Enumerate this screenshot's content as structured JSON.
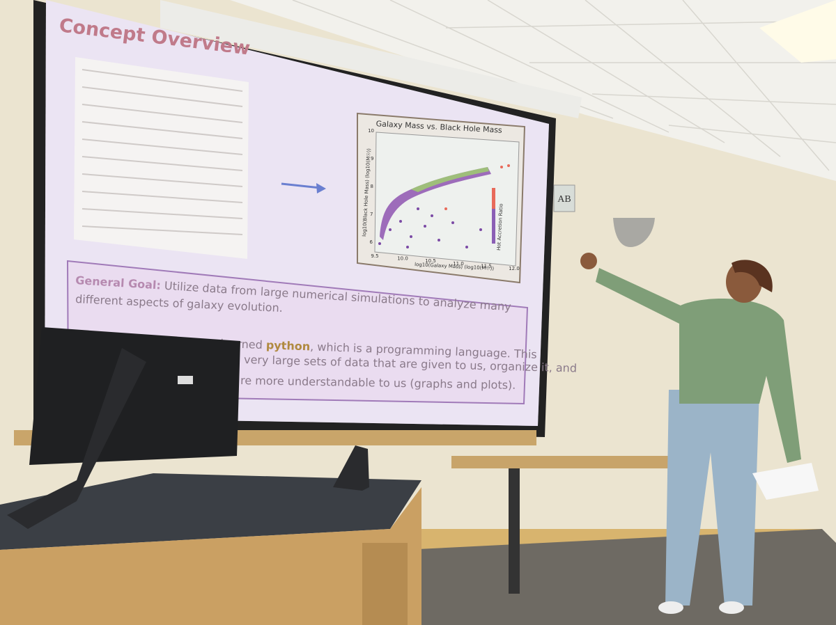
{
  "slide": {
    "title": "Concept Overview",
    "plot": {
      "title": "Galaxy Mass vs. Black Hole Mass",
      "y_label": "log10(Black Hole Mass) (log10(M☉))",
      "x_label": "log10(Galaxy Mass) (log10(M☉))",
      "colorbar_label": "Hot Accretion Ratio",
      "yticks": [
        "10",
        "9",
        "8",
        "7",
        "6"
      ],
      "xticks": [
        "9.5",
        "10.0",
        "10.5",
        "11.0",
        "11.5",
        "12.0"
      ]
    },
    "goal": {
      "label": "General Goal:",
      "text_lines": [
        "Utilize data from large numerical simulations to analyze many",
        "different aspects of galaxy evolution."
      ]
    },
    "learned": {
      "line1_start": "I have learned ",
      "line1_bold": "python",
      "line1_end": ", which is a programming language. This",
      "line2": "very large sets of data that are given to us, organize it, and",
      "line3": "re more understandable to us (graphs and plots)."
    }
  },
  "room_sign": "AB"
}
